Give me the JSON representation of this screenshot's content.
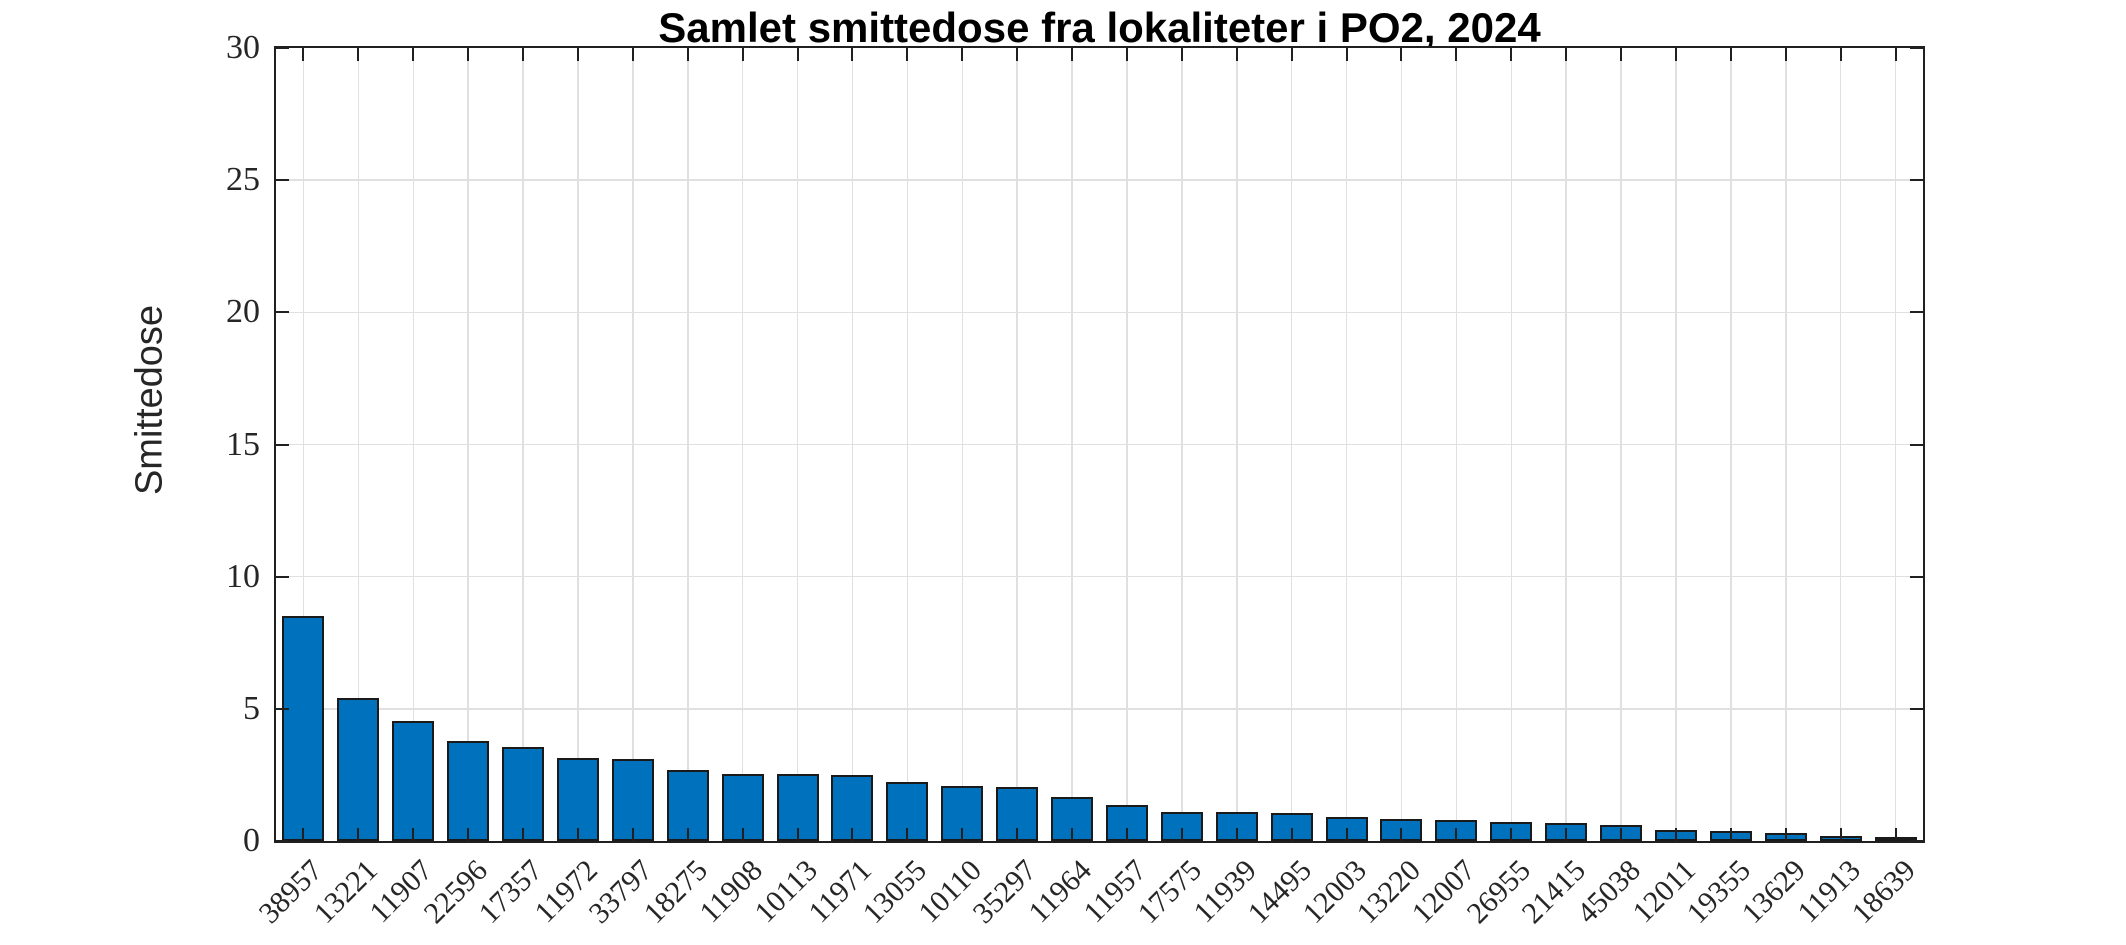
{
  "chart_data": {
    "type": "bar",
    "title": "Samlet smittedose fra lokaliteter i PO2, 2024",
    "ylabel": "Smittedose",
    "xlabel": "",
    "categories": [
      "38957",
      "13221",
      "11907",
      "22596",
      "17357",
      "11972",
      "33797",
      "18275",
      "11908",
      "10113",
      "11971",
      "13055",
      "10110",
      "35297",
      "11964",
      "11957",
      "17575",
      "11939",
      "14495",
      "12003",
      "13220",
      "12007",
      "26955",
      "21415",
      "45038",
      "12011",
      "19355",
      "13629",
      "11913",
      "18639"
    ],
    "values": [
      8.5,
      5.4,
      4.55,
      3.8,
      3.55,
      3.15,
      3.1,
      2.7,
      2.55,
      2.52,
      2.5,
      2.25,
      2.1,
      2.05,
      1.65,
      1.35,
      1.1,
      1.08,
      1.05,
      0.9,
      0.85,
      0.78,
      0.72,
      0.68,
      0.62,
      0.4,
      0.36,
      0.3,
      0.2,
      0.15
    ],
    "ylim": [
      0,
      30
    ],
    "yticks": [
      0,
      5,
      10,
      15,
      20,
      25,
      30
    ],
    "grid": true,
    "legend_position": "none",
    "x_tick_rotation_deg": 45,
    "bar_color": "#0072BD",
    "bar_edge_color": "#1a1a1a",
    "axis_color": "#202020",
    "grid_color": "#e0e0e0",
    "background_color": "#ffffff"
  }
}
